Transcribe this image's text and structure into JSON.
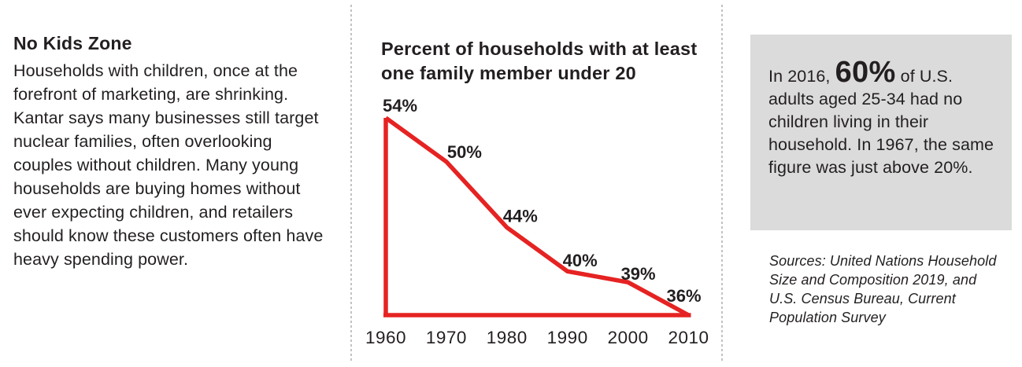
{
  "left_panel": {
    "title": "No Kids Zone",
    "body": "Households with children, once at the forefront of marketing, are shrinking. Kantar says many businesses still target nuclear families, often overlooking couples without children. Many young households are buying homes without ever expecting children, and retailers should know these customers often have heavy spending power."
  },
  "chart_data": {
    "type": "line",
    "title": "Percent of households with at least one family member under 20",
    "categories": [
      "1960",
      "1970",
      "1980",
      "1990",
      "2000",
      "2010"
    ],
    "values": [
      54,
      50,
      44,
      40,
      39,
      36
    ],
    "point_labels": [
      "54%",
      "50%",
      "44%",
      "40%",
      "39%",
      "36%"
    ],
    "xlabel": "",
    "ylabel": "",
    "ylim": [
      36,
      54
    ],
    "grid": false,
    "legend": false,
    "line_color": "#e52322",
    "label_color": "#231f20",
    "axes_drawn_in_line_color": true
  },
  "callout": {
    "prefix": "In 2016, ",
    "highlight": "60%",
    "suffix": " of U.S. adults aged 25-34 had no children living in their household. In 1967, the same figure was just above 20%."
  },
  "sources_text": "Sources: United Nations Household Size and Composition 2019, and U.S. Census Bureau, Current Population Survey",
  "colors": {
    "accent_red": "#e52322",
    "callout_bg": "#dbdbdb",
    "text": "#231f20",
    "divider": "#c2c2c2"
  }
}
